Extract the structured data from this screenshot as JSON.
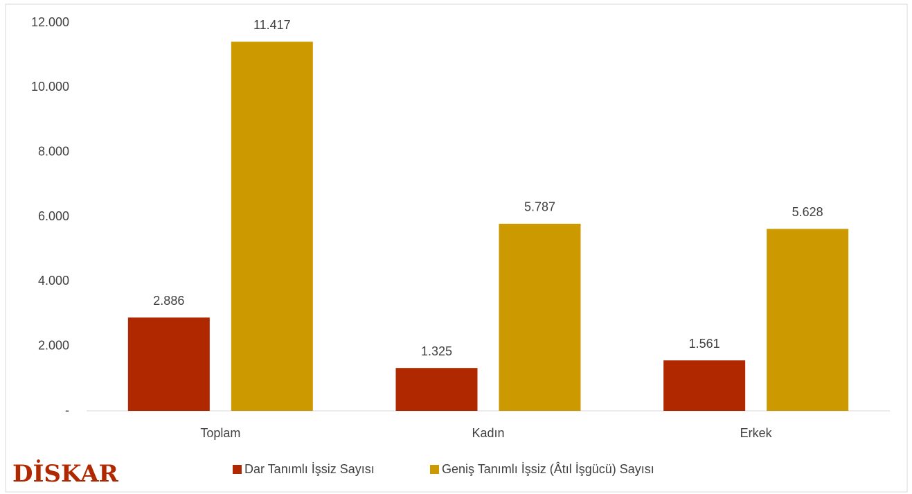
{
  "chart_data": {
    "type": "bar",
    "categories": [
      "Toplam",
      "Kadın",
      "Erkek"
    ],
    "series": [
      {
        "name": "Dar Tanımlı İşsiz Sayısı",
        "color": "#b02800",
        "values": [
          2886,
          1325,
          1561
        ],
        "value_labels": [
          "2.886",
          "1.325",
          "1.561"
        ]
      },
      {
        "name": "Geniş Tanımlı İşsiz (Âtıl İşgücü) Sayısı",
        "color": "#cc9a00",
        "values": [
          11417,
          5787,
          5628
        ],
        "value_labels": [
          "11.417",
          "5.787",
          "5.628"
        ]
      }
    ],
    "ylim": [
      0,
      12000
    ],
    "yticks": [
      {
        "value": 0,
        "label": "-"
      },
      {
        "value": 2000,
        "label": "2.000"
      },
      {
        "value": 4000,
        "label": "4.000"
      },
      {
        "value": 6000,
        "label": "6.000"
      },
      {
        "value": 8000,
        "label": "8.000"
      },
      {
        "value": 10000,
        "label": "10.000"
      },
      {
        "value": 12000,
        "label": "12.000"
      }
    ],
    "grid": false,
    "legend": "bottom",
    "logo": "DİSKAR"
  }
}
